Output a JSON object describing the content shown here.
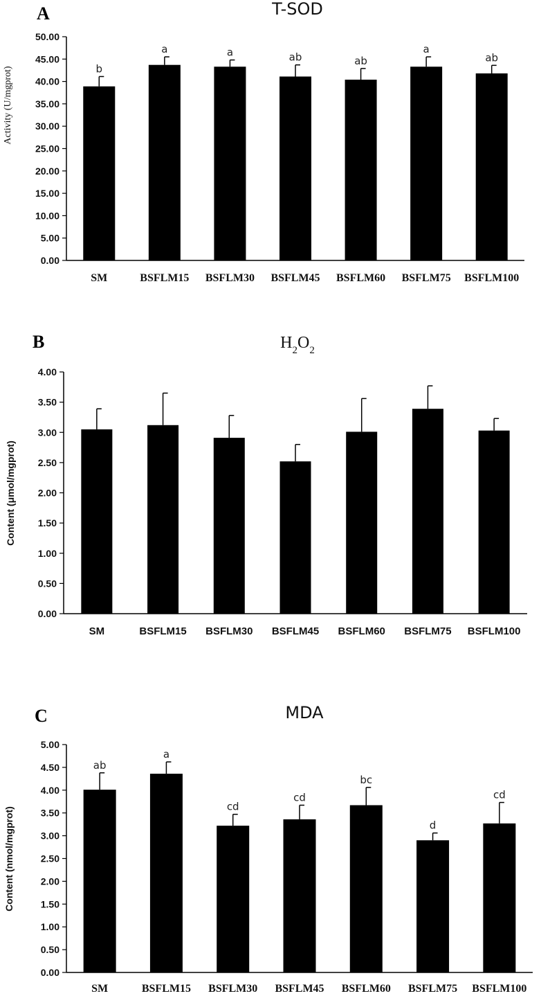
{
  "chart_data": [
    {
      "panel": "A",
      "type": "bar",
      "title": "T-SOD",
      "ylabel": "Activity (U/mgprot)",
      "xlabel": "",
      "ylim": [
        0,
        50
      ],
      "ytick_step": 5,
      "ytick_decimals": 2,
      "categories": [
        "SM",
        "BSFLM15",
        "BSFLM30",
        "BSFLM45",
        "BSFLM60",
        "BSFLM75",
        "BSFLM100"
      ],
      "values": [
        38.9,
        43.7,
        43.3,
        41.1,
        40.4,
        43.3,
        41.8
      ],
      "errors": [
        2.2,
        1.8,
        1.5,
        2.6,
        2.5,
        2.2,
        1.8
      ],
      "significance": [
        "b",
        "a",
        "a",
        "ab",
        "ab",
        "a",
        "ab"
      ],
      "bar_color": "#000000"
    },
    {
      "panel": "B",
      "type": "bar",
      "title": "H2O2",
      "ylabel": "Content (μmol/mgprot)",
      "xlabel": "",
      "ylim": [
        0,
        4
      ],
      "ytick_step": 0.5,
      "ytick_decimals": 2,
      "categories": [
        "SM",
        "BSFLM15",
        "BSFLM30",
        "BSFLM45",
        "BSFLM60",
        "BSFLM75",
        "BSFLM100"
      ],
      "values": [
        3.05,
        3.12,
        2.91,
        2.52,
        3.01,
        3.39,
        3.03
      ],
      "errors": [
        0.34,
        0.53,
        0.37,
        0.28,
        0.55,
        0.38,
        0.2
      ],
      "significance": [],
      "bar_color": "#000000"
    },
    {
      "panel": "C",
      "type": "bar",
      "title": "MDA",
      "ylabel": "Content (nmol/mgprot)",
      "xlabel": "",
      "ylim": [
        0,
        5
      ],
      "ytick_step": 0.5,
      "ytick_decimals": 2,
      "categories": [
        "SM",
        "BSFLM15",
        "BSFLM30",
        "BSFLM45",
        "BSFLM60",
        "BSFLM75",
        "BSFLM100"
      ],
      "values": [
        4.01,
        4.36,
        3.22,
        3.36,
        3.67,
        2.9,
        3.27
      ],
      "errors": [
        0.37,
        0.26,
        0.25,
        0.31,
        0.39,
        0.16,
        0.46
      ],
      "significance": [
        "ab",
        "a",
        "cd",
        "cd",
        "bc",
        "d",
        "cd"
      ],
      "bar_color": "#000000"
    }
  ]
}
